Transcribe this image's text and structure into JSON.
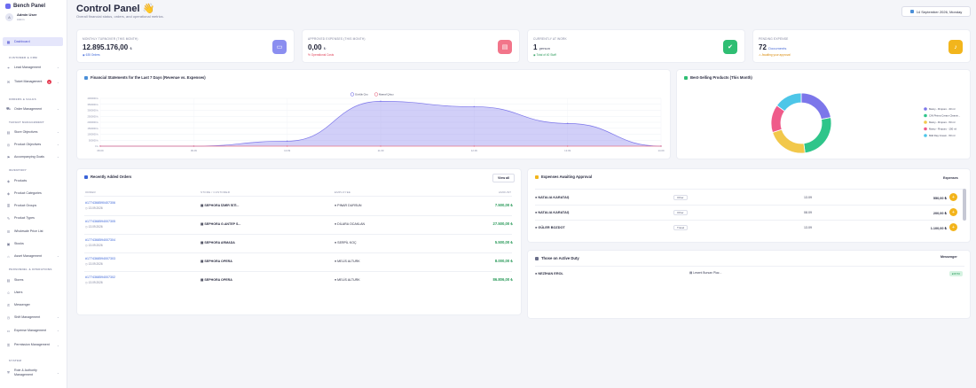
{
  "app": {
    "name": "Bench Panel"
  },
  "user": {
    "name": "Admin User",
    "role": "Admin"
  },
  "sidebar": {
    "items": [
      {
        "label": "Dashboard",
        "icon": "grid-icon",
        "chevron": false
      },
      {
        "label": "Lead Management",
        "icon": "lead-icon",
        "chevron": true
      },
      {
        "label": "Ticket Management",
        "icon": "ticket-icon",
        "chevron": true,
        "badge": "6"
      },
      {
        "label": "Order Management",
        "icon": "cart-icon",
        "chevron": true
      },
      {
        "label": "Store Objectives",
        "icon": "store-icon",
        "chevron": true
      },
      {
        "label": "Product Objectives",
        "icon": "target-icon",
        "chevron": true
      },
      {
        "label": "Accompanying Goals",
        "icon": "flag-icon",
        "chevron": true
      },
      {
        "label": "Products",
        "icon": "tag-icon",
        "chevron": false
      },
      {
        "label": "Product Categories",
        "icon": "tag-icon",
        "chevron": false
      },
      {
        "label": "Product Groups",
        "icon": "layers-icon",
        "chevron": false
      },
      {
        "label": "Product Types",
        "icon": "pen-icon",
        "chevron": false
      },
      {
        "label": "Wholesale Price List",
        "icon": "list-icon",
        "chevron": false
      },
      {
        "label": "Stocks",
        "icon": "box-icon",
        "chevron": false
      },
      {
        "label": "Asset Management",
        "icon": "asset-icon",
        "chevron": true
      },
      {
        "label": "Stores",
        "icon": "store-icon",
        "chevron": false
      },
      {
        "label": "Users",
        "icon": "users-icon",
        "chevron": false
      },
      {
        "label": "Messenger",
        "icon": "chat-icon",
        "chevron": false
      },
      {
        "label": "Shift Management",
        "icon": "clock-icon",
        "chevron": true
      },
      {
        "label": "Expense Management",
        "icon": "wallet-icon",
        "chevron": true
      },
      {
        "label": "Permission Management",
        "icon": "key-icon",
        "chevron": true
      },
      {
        "label": "Role & Authority Management",
        "icon": "shield-icon",
        "chevron": true
      }
    ],
    "sections": {
      "customer": "CUSTOMER & CRM",
      "orders": "ORDERS & SALES",
      "targets": "TARGET MANAGEMENT",
      "inventory": "INVENTORY",
      "personnel": "PERSONNEL & OPERATIONS",
      "system": "SYSTEM"
    }
  },
  "header": {
    "title": "Control Panel 👋",
    "subtitle": "Overall financial status, orders, and operational metrics.",
    "date": "14 September 2026, Monday"
  },
  "kpis": [
    {
      "label": "MONTHLY TURNOVER (THIS MONTH)",
      "value": "12.895.176,00",
      "unit": "₺",
      "note": "635 Orders",
      "note_color": "#3a64d8",
      "badge_color": "#8b8ef0",
      "icon": "wallet-icon"
    },
    {
      "label": "APPROVED EXPENSES (THIS MONTH)",
      "value": "0,00",
      "unit": "₺",
      "note": "% Operational Costs",
      "note_color": "#e0435a",
      "badge_color": "#f2758a",
      "icon": "document-icon"
    },
    {
      "label": "CURRENTLY AT WORK",
      "value": "1",
      "unit": "person",
      "note": "Total of 40 Staff",
      "note_color": "#2a9a5a",
      "badge_color": "#2fbe73",
      "icon": "user-check-icon"
    },
    {
      "label": "PENDING EXPENSE",
      "value": "72",
      "unit": "Documents",
      "note": "Awaiting your approval",
      "note_color": "#d98a0b",
      "badge_color": "#f2b51c",
      "icon": "bell-icon"
    }
  ],
  "financial": {
    "title": "Financial Statements for the Last 7 Days (Revenue vs. Expenses)",
    "legend": [
      "Günlük Ciro",
      "Masraf Çıkışı"
    ]
  },
  "chart_data": {
    "type": "area",
    "title": "Financial Statements for the Last 7 Days (Revenue vs. Expenses)",
    "x": [
      "08.09",
      "09.09",
      "10.09",
      "11.09",
      "12.09",
      "13.09",
      "14.09"
    ],
    "series": [
      {
        "name": "Günlük Ciro",
        "color": "#7c76ea",
        "values": [
          0,
          0,
          420000,
          3750000,
          3300000,
          1900000,
          0
        ]
      },
      {
        "name": "Masraf Çıkışı",
        "color": "#e8748a",
        "values": [
          0,
          0,
          0,
          0,
          0,
          0,
          0
        ]
      }
    ],
    "ylim": [
      0,
      4000000
    ],
    "yticks": [
      "0 ₺",
      "500000 ₺",
      "1000000 ₺",
      "1500000 ₺",
      "2000000 ₺",
      "2500000 ₺",
      "3000000 ₺",
      "3500000 ₺",
      "4000000 ₺"
    ],
    "grid": true,
    "legend_position": "top"
  },
  "best_selling": {
    "title": "Best-Selling Products (This Month)",
    "slices": [
      {
        "label": "Mamy - Rmporo - 30 ml",
        "value": 22,
        "color": "#7c76ea"
      },
      {
        "label": "CIN Pirima Cream Cleanin...",
        "value": 26,
        "color": "#2fc58a"
      },
      {
        "label": "Mamy - Rmporo - 50 ml",
        "value": 22,
        "color": "#f2c84b"
      },
      {
        "label": "Mamy - Rmporo - 150 ml",
        "value": 15,
        "color": "#ef5b8a"
      },
      {
        "label": "Mild Day Cream - 50 ml",
        "value": 15,
        "color": "#4dc6e8"
      }
    ]
  },
  "orders": {
    "title": "Recently Added Orders",
    "view_all": "View all",
    "columns": [
      "ORDER",
      "STORE / CUSTOMER",
      "EMPLOYEE",
      "AMOUNT"
    ],
    "rows": [
      {
        "id": "#177436859040730​6",
        "date": "13.09.2026",
        "store": "SEPHORA İZMİR İSTİ...",
        "employee": "PINAR DURSUN",
        "amount": "7.500,00 ₺"
      },
      {
        "id": "#1774368594007305",
        "date": "13.09.2026",
        "store": "SEPHORA G.ANTEP S...",
        "employee": "DİLARA OCAKLAN",
        "amount": "27.500,00 ₺"
      },
      {
        "id": "#1774368594007304",
        "date": "13.09.2026",
        "store": "SEPHORA ARMADA",
        "employee": "SERPİL KOÇ",
        "amount": "5.500,00 ₺"
      },
      {
        "id": "#1774368594007303",
        "date": "13.09.2026",
        "store": "SEPHORA OPERA",
        "employee": "MELİS ALTURK",
        "amount": "8.000,00 ₺"
      },
      {
        "id": "#1774368594007302",
        "date": "13.09.2026",
        "store": "SEPHORA OPERA",
        "employee": "MELİS ALTURK",
        "amount": "86.806,00 ₺"
      }
    ]
  },
  "expenses": {
    "title": "Expenses Awaiting Approval",
    "button": "Expenses",
    "rows": [
      {
        "name": "NATALIA KARATAŞ",
        "tag": "Other",
        "date": "13.09",
        "amount": "550,00 ₺"
      },
      {
        "name": "NATALIA KARATAŞ",
        "tag": "Other",
        "date": "08.09",
        "amount": "200,00 ₺"
      },
      {
        "name": "GÜLER BOZDOT",
        "tag": "Travel",
        "date": "13.09",
        "amount": "1.100,00 ₺"
      }
    ]
  },
  "duty": {
    "title": "Those on Active Duty",
    "button": "Messenger",
    "rows": [
      {
        "name": "NEZİHAN EROL",
        "store": "Lesent Bursan Plaz...",
        "status": "08:50"
      }
    ]
  }
}
